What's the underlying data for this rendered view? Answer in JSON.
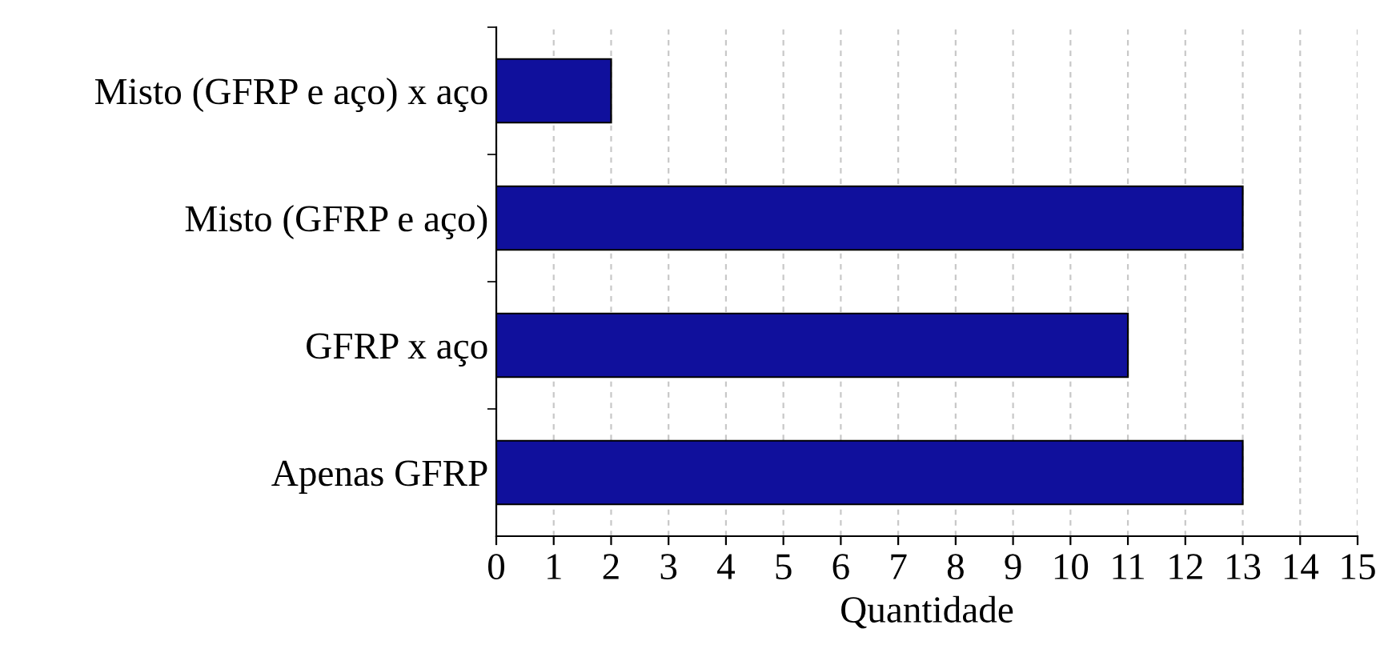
{
  "chart_data": {
    "type": "bar",
    "orientation": "horizontal",
    "categories": [
      "Misto (GFRP e aço) x aço",
      "Misto (GFRP e aço)",
      "GFRP x aço",
      "Apenas GFRP"
    ],
    "values": [
      2,
      13,
      11,
      13
    ],
    "color": "#10109c",
    "xlim": [
      0,
      15
    ],
    "xticks": [
      0,
      1,
      2,
      3,
      4,
      5,
      6,
      7,
      8,
      9,
      10,
      11,
      12,
      13,
      14,
      15
    ],
    "xlabel": "Quantidade",
    "grid": "x"
  }
}
